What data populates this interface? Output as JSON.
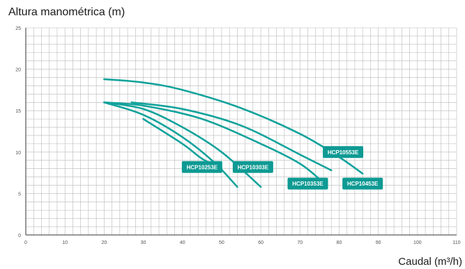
{
  "chart_data": {
    "type": "line",
    "title": "",
    "ylabel": "Altura manométrica (m)",
    "xlabel": "Caudal (m³/h)",
    "xlim": [
      0,
      110
    ],
    "ylim": [
      0,
      25
    ],
    "x_ticks": [
      0,
      10,
      20,
      30,
      40,
      50,
      60,
      70,
      80,
      90,
      100,
      110
    ],
    "y_ticks": [
      0,
      5,
      10,
      15,
      20,
      25
    ],
    "grid": true,
    "line_color": "#12a39c",
    "label_color": "#0e9a93",
    "series": [
      {
        "name": "HCP10253E",
        "label_at": [
          45,
          8.2
        ],
        "points": [
          [
            20,
            16
          ],
          [
            30,
            14.5
          ],
          [
            40,
            11.8
          ],
          [
            48,
            8.8
          ],
          [
            54,
            5.8
          ]
        ]
      },
      {
        "name": "HCP10303E",
        "label_at": [
          58,
          8.2
        ],
        "points": [
          [
            20,
            16
          ],
          [
            30,
            15.2
          ],
          [
            40,
            13.0
          ],
          [
            50,
            10.0
          ],
          [
            60,
            5.8
          ]
        ]
      },
      {
        "name": "HCP10353E",
        "label_at": [
          72,
          6.2
        ],
        "points": [
          [
            20,
            16
          ],
          [
            30,
            15.6
          ],
          [
            45,
            14.0
          ],
          [
            60,
            11.0
          ],
          [
            70,
            8.6
          ],
          [
            76,
            6.3
          ]
        ]
      },
      {
        "name": "HCP10453E",
        "label_at": [
          86,
          6.2
        ],
        "points": [
          [
            27,
            16
          ],
          [
            40,
            15.2
          ],
          [
            55,
            13.2
          ],
          [
            70,
            9.7
          ],
          [
            78,
            7.8
          ]
        ]
      },
      {
        "name": "HCP10553E",
        "label_at": [
          81,
          10.0
        ],
        "points": [
          [
            20,
            18.8
          ],
          [
            30,
            18.4
          ],
          [
            40,
            17.5
          ],
          [
            55,
            15.3
          ],
          [
            70,
            12.2
          ],
          [
            80,
            9.4
          ],
          [
            86,
            7.4
          ]
        ]
      },
      {
        "name": "",
        "label_at": null,
        "points": [
          [
            30,
            14.0
          ],
          [
            40,
            11.0
          ],
          [
            45,
            9.2
          ],
          [
            50,
            8.0
          ]
        ]
      }
    ]
  }
}
